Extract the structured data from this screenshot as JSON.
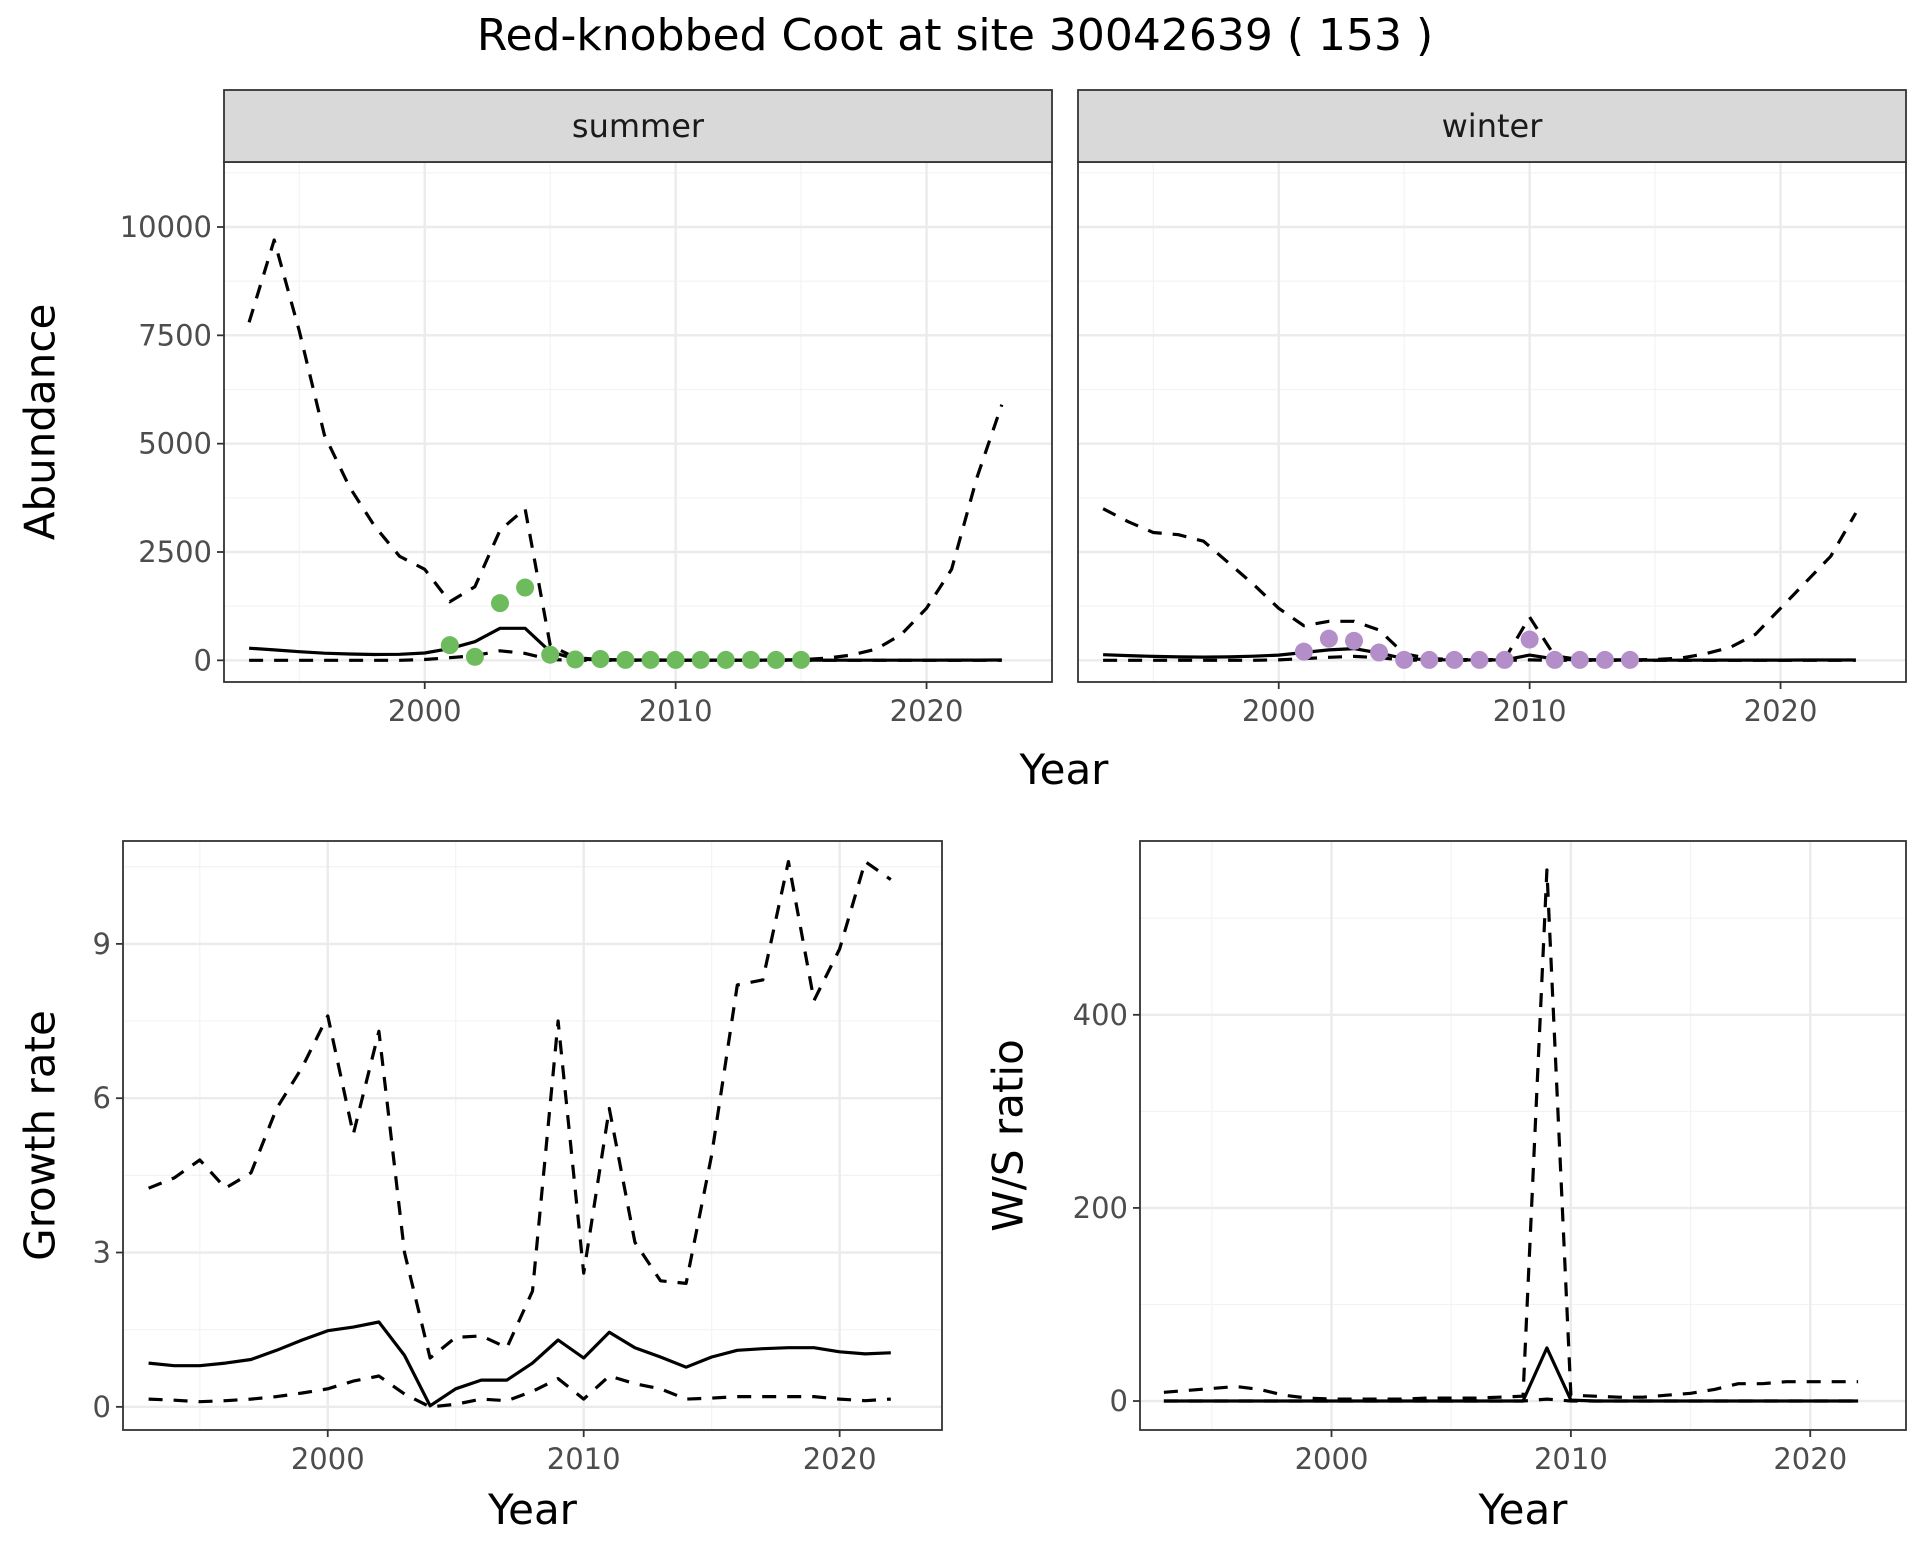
{
  "title": "Red-knobbed Coot at site 30042639 ( 153 )",
  "chart_data": [
    {
      "type": "line",
      "panel": "summer",
      "strip": "summer",
      "xlabel": "",
      "ylabel": "Abundance",
      "xlim": [
        1992,
        2025
      ],
      "ylim": [
        -500,
        11500
      ],
      "xticks": [
        2000,
        2010,
        2020
      ],
      "yticks": [
        0,
        2500,
        5000,
        7500,
        10000
      ],
      "point_color": "#6dbb5d",
      "series": [
        {
          "role": "median",
          "style": "solid",
          "x": [
            1993,
            1994,
            1995,
            1996,
            1997,
            1998,
            1999,
            2000,
            2001,
            2002,
            2003,
            2004,
            2005,
            2006,
            2007,
            2008,
            2009,
            2010,
            2011,
            2012,
            2013,
            2014,
            2015,
            2016,
            2017,
            2018,
            2019,
            2020,
            2021,
            2022,
            2023
          ],
          "y": [
            280,
            240,
            200,
            165,
            145,
            135,
            140,
            170,
            270,
            430,
            740,
            740,
            200,
            30,
            10,
            5,
            3,
            2,
            2,
            2,
            2,
            2,
            2,
            2,
            3,
            3,
            4,
            4,
            5,
            6,
            7
          ]
        },
        {
          "role": "lower",
          "style": "dashed",
          "x": [
            1993,
            1994,
            1995,
            1996,
            1997,
            1998,
            1999,
            2000,
            2001,
            2002,
            2003,
            2004,
            2005,
            2006,
            2007,
            2008,
            2009,
            2010,
            2011,
            2012,
            2013,
            2014,
            2015,
            2016,
            2017,
            2018,
            2019,
            2020,
            2021,
            2022,
            2023
          ],
          "y": [
            0,
            0,
            0,
            0,
            0,
            0,
            0,
            20,
            60,
            110,
            220,
            160,
            20,
            0,
            0,
            0,
            0,
            0,
            0,
            0,
            0,
            0,
            0,
            0,
            0,
            0,
            0,
            0,
            0,
            0,
            0
          ]
        },
        {
          "role": "upper",
          "style": "dashed",
          "x": [
            1993,
            1994,
            1995,
            1996,
            1997,
            1998,
            1999,
            2000,
            2001,
            2002,
            2003,
            2004,
            2005,
            2006,
            2007,
            2008,
            2009,
            2010,
            2011,
            2012,
            2013,
            2014,
            2015,
            2016,
            2017,
            2018,
            2019,
            2020,
            2021,
            2022,
            2023
          ],
          "y": [
            7800,
            9700,
            7600,
            5200,
            4000,
            3100,
            2400,
            2100,
            1350,
            1700,
            3000,
            3500,
            350,
            60,
            20,
            10,
            8,
            6,
            5,
            5,
            6,
            8,
            15,
            50,
            120,
            260,
            600,
            1200,
            2100,
            4200,
            5900
          ]
        },
        {
          "role": "observed",
          "style": "points",
          "x": [
            2001,
            2002,
            2003,
            2004,
            2005,
            2006,
            2007,
            2008,
            2009,
            2010,
            2011,
            2012,
            2013,
            2014,
            2015
          ],
          "y": [
            350,
            80,
            1320,
            1680,
            130,
            20,
            30,
            10,
            10,
            10,
            10,
            10,
            10,
            10,
            10
          ]
        }
      ]
    },
    {
      "type": "line",
      "panel": "winter",
      "strip": "winter",
      "xlabel": "",
      "ylabel": "",
      "xlim": [
        1992,
        2025
      ],
      "ylim": [
        -500,
        11500
      ],
      "xticks": [
        2000,
        2010,
        2020
      ],
      "yticks": [
        0,
        2500,
        5000,
        7500,
        10000
      ],
      "point_color": "#b48ec8",
      "series": [
        {
          "role": "median",
          "style": "solid",
          "x": [
            1993,
            1994,
            1995,
            1996,
            1997,
            1998,
            1999,
            2000,
            2001,
            2002,
            2003,
            2004,
            2005,
            2006,
            2007,
            2008,
            2009,
            2010,
            2011,
            2012,
            2013,
            2014,
            2015,
            2016,
            2017,
            2018,
            2019,
            2020,
            2021,
            2022,
            2023
          ],
          "y": [
            130,
            110,
            90,
            80,
            75,
            80,
            95,
            120,
            180,
            240,
            270,
            170,
            40,
            15,
            10,
            8,
            10,
            120,
            30,
            8,
            5,
            4,
            4,
            4,
            5,
            5,
            6,
            6,
            7,
            8,
            8
          ]
        },
        {
          "role": "lower",
          "style": "dashed",
          "x": [
            1993,
            1994,
            1995,
            1996,
            1997,
            1998,
            1999,
            2000,
            2001,
            2002,
            2003,
            2004,
            2005,
            2006,
            2007,
            2008,
            2009,
            2010,
            2011,
            2012,
            2013,
            2014,
            2015,
            2016,
            2017,
            2018,
            2019,
            2020,
            2021,
            2022,
            2023
          ],
          "y": [
            0,
            0,
            0,
            0,
            0,
            0,
            0,
            10,
            40,
            70,
            90,
            60,
            5,
            0,
            0,
            0,
            0,
            10,
            0,
            0,
            0,
            0,
            0,
            0,
            0,
            0,
            0,
            0,
            0,
            0,
            0
          ]
        },
        {
          "role": "upper",
          "style": "dashed",
          "x": [
            1993,
            1994,
            1995,
            1996,
            1997,
            1998,
            1999,
            2000,
            2001,
            2002,
            2003,
            2004,
            2005,
            2006,
            2007,
            2008,
            2009,
            2010,
            2011,
            2012,
            2013,
            2014,
            2015,
            2016,
            2017,
            2018,
            2019,
            2020,
            2021,
            2022,
            2023
          ],
          "y": [
            3500,
            3200,
            2950,
            2900,
            2750,
            2250,
            1750,
            1200,
            800,
            900,
            900,
            700,
            150,
            40,
            20,
            15,
            20,
            1000,
            100,
            20,
            10,
            10,
            20,
            50,
            150,
            300,
            600,
            1200,
            1800,
            2400,
            3400
          ]
        },
        {
          "role": "observed",
          "style": "points",
          "x": [
            2001,
            2002,
            2003,
            2004,
            2005,
            2006,
            2007,
            2008,
            2009,
            2010,
            2011,
            2012,
            2013,
            2014
          ],
          "y": [
            200,
            500,
            450,
            180,
            10,
            10,
            10,
            10,
            10,
            480,
            10,
            10,
            10,
            10
          ]
        }
      ]
    },
    {
      "type": "line",
      "panel": "growth",
      "xlabel": "Year",
      "ylabel": "Growth rate",
      "xlim": [
        1992,
        2024
      ],
      "ylim": [
        -0.45,
        11.0
      ],
      "xticks": [
        2000,
        2010,
        2020
      ],
      "yticks": [
        0,
        3,
        6,
        9
      ],
      "series": [
        {
          "role": "median",
          "style": "solid",
          "x": [
            1993,
            1994,
            1995,
            1996,
            1997,
            1998,
            1999,
            2000,
            2001,
            2002,
            2003,
            2004,
            2005,
            2006,
            2007,
            2008,
            2009,
            2010,
            2011,
            2012,
            2013,
            2014,
            2015,
            2016,
            2017,
            2018,
            2019,
            2020,
            2021,
            2022
          ],
          "y": [
            0.85,
            0.8,
            0.8,
            0.85,
            0.92,
            1.1,
            1.3,
            1.48,
            1.55,
            1.65,
            1.0,
            0.02,
            0.35,
            0.52,
            0.52,
            0.85,
            1.3,
            0.95,
            1.45,
            1.15,
            0.97,
            0.77,
            0.97,
            1.1,
            1.13,
            1.15,
            1.15,
            1.07,
            1.03,
            1.05
          ]
        },
        {
          "role": "lower",
          "style": "dashed",
          "x": [
            1993,
            1994,
            1995,
            1996,
            1997,
            1998,
            1999,
            2000,
            2001,
            2002,
            2003,
            2004,
            2005,
            2006,
            2007,
            2008,
            2009,
            2010,
            2011,
            2012,
            2013,
            2014,
            2015,
            2016,
            2017,
            2018,
            2019,
            2020,
            2021,
            2022
          ],
          "y": [
            0.15,
            0.13,
            0.1,
            0.12,
            0.15,
            0.2,
            0.27,
            0.35,
            0.5,
            0.6,
            0.25,
            0.0,
            0.05,
            0.15,
            0.12,
            0.3,
            0.55,
            0.15,
            0.6,
            0.45,
            0.35,
            0.15,
            0.17,
            0.2,
            0.2,
            0.2,
            0.2,
            0.15,
            0.12,
            0.15
          ]
        },
        {
          "role": "upper",
          "style": "dashed",
          "x": [
            1993,
            1994,
            1995,
            1996,
            1997,
            1998,
            1999,
            2000,
            2001,
            2002,
            2003,
            2004,
            2005,
            2006,
            2007,
            2008,
            2009,
            2010,
            2011,
            2012,
            2013,
            2014,
            2015,
            2016,
            2017,
            2018,
            2019,
            2020,
            2021,
            2022
          ],
          "y": [
            4.25,
            4.45,
            4.8,
            4.25,
            4.55,
            5.8,
            6.6,
            7.6,
            5.3,
            7.3,
            3.0,
            0.95,
            1.35,
            1.38,
            1.15,
            2.25,
            7.5,
            2.6,
            5.8,
            3.2,
            2.45,
            2.4,
            4.9,
            8.2,
            8.3,
            10.6,
            7.9,
            8.9,
            10.6,
            10.25
          ]
        }
      ]
    },
    {
      "type": "line",
      "panel": "ws_ratio",
      "xlabel": "Year",
      "ylabel": "W/S ratio",
      "xlim": [
        1992,
        2024
      ],
      "ylim": [
        -30,
        580
      ],
      "xticks": [
        2000,
        2010,
        2020
      ],
      "yticks": [
        0,
        200,
        400
      ],
      "series": [
        {
          "role": "median",
          "style": "solid",
          "x": [
            1993,
            1994,
            1995,
            1996,
            1997,
            1998,
            1999,
            2000,
            2001,
            2002,
            2003,
            2004,
            2005,
            2006,
            2007,
            2008,
            2009,
            2010,
            2011,
            2012,
            2013,
            2014,
            2015,
            2016,
            2017,
            2018,
            2019,
            2020,
            2021,
            2022
          ],
          "y": [
            0,
            0,
            0,
            0,
            0,
            0,
            0,
            0,
            0,
            0,
            0,
            0,
            0,
            0,
            0,
            0,
            55,
            1,
            0,
            0,
            0,
            0,
            0,
            0,
            0,
            0,
            0,
            0,
            0,
            0
          ]
        },
        {
          "role": "lower",
          "style": "dashed",
          "x": [
            1993,
            1994,
            1995,
            1996,
            1997,
            1998,
            1999,
            2000,
            2001,
            2002,
            2003,
            2004,
            2005,
            2006,
            2007,
            2008,
            2009,
            2010,
            2011,
            2012,
            2013,
            2014,
            2015,
            2016,
            2017,
            2018,
            2019,
            2020,
            2021,
            2022
          ],
          "y": [
            0,
            0,
            0,
            0,
            0,
            0,
            0,
            0,
            0,
            0,
            0,
            0,
            0,
            0,
            0,
            0,
            2,
            0,
            0,
            0,
            0,
            0,
            0,
            0,
            0,
            0,
            0,
            0,
            0,
            0
          ]
        },
        {
          "role": "upper",
          "style": "dashed",
          "x": [
            1993,
            1994,
            1995,
            1996,
            1997,
            1998,
            1999,
            2000,
            2001,
            2002,
            2003,
            2004,
            2005,
            2006,
            2007,
            2008,
            2009,
            2010,
            2011,
            2012,
            2013,
            2014,
            2015,
            2016,
            2017,
            2018,
            2019,
            2020,
            2021,
            2022
          ],
          "y": [
            9,
            11,
            13,
            15,
            12,
            6,
            3,
            2,
            2,
            2,
            2,
            3,
            3,
            3,
            4,
            5,
            550,
            6,
            5,
            4,
            4,
            6,
            8,
            12,
            18,
            18,
            20,
            20,
            20,
            20
          ]
        }
      ]
    }
  ],
  "bottom_xlabel_top": "Year"
}
